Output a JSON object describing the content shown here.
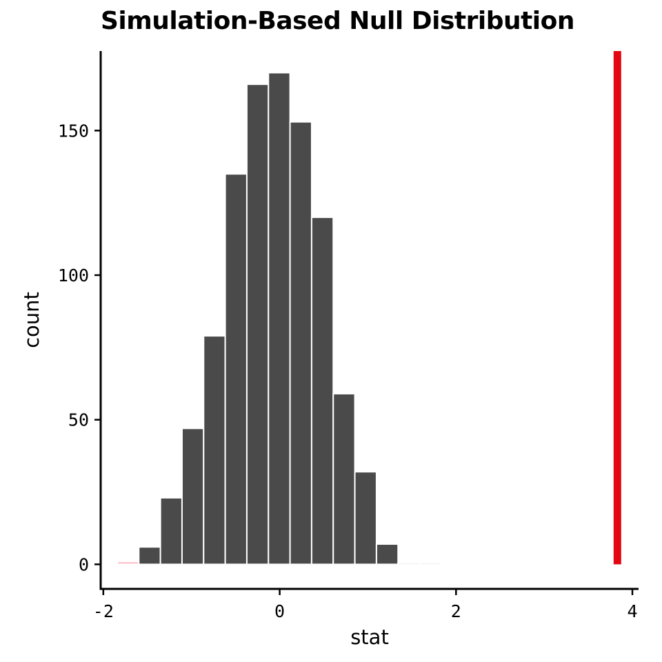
{
  "chart_data": {
    "type": "bar",
    "title": "Simulation-Based Null Distribution",
    "xlabel": "stat",
    "ylabel": "count",
    "xlim": [
      -2.03,
      4.07
    ],
    "ylim": [
      -8.5,
      177.5
    ],
    "x_ticks": [
      -2,
      0,
      2,
      4
    ],
    "x_tick_labels": [
      "-2",
      "0",
      "2",
      "4"
    ],
    "y_ticks": [
      0,
      50,
      100,
      150
    ],
    "y_tick_labels": [
      "0",
      "50",
      "100",
      "150"
    ],
    "bin_width": 0.245,
    "bins": [
      {
        "center": -1.72,
        "count": 1,
        "color": "#FFC0CB"
      },
      {
        "center": -1.475,
        "count": 6
      },
      {
        "center": -1.23,
        "count": 23
      },
      {
        "center": -0.985,
        "count": 47
      },
      {
        "center": -0.74,
        "count": 79
      },
      {
        "center": -0.495,
        "count": 135
      },
      {
        "center": -0.25,
        "count": 166
      },
      {
        "center": -0.005,
        "count": 170
      },
      {
        "center": 0.24,
        "count": 153
      },
      {
        "center": 0.485,
        "count": 120
      },
      {
        "center": 0.73,
        "count": 59
      },
      {
        "center": 0.975,
        "count": 32
      },
      {
        "center": 1.22,
        "count": 7
      },
      {
        "center": 1.465,
        "count": 0.5
      },
      {
        "center": 1.71,
        "count": 0.5
      }
    ],
    "bar_color": "#4A4A4A",
    "bar_outline": "#FFFFFF",
    "observed_stat": 3.83,
    "observed_color": "#E30613",
    "grid": false,
    "legend": "none"
  }
}
